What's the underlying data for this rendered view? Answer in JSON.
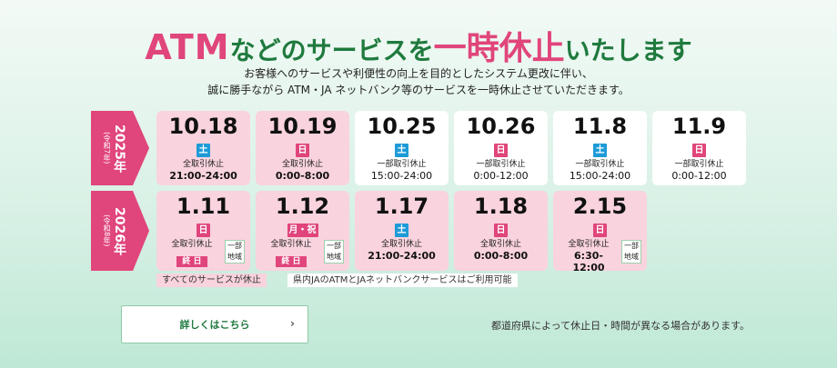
{
  "headline": {
    "part1": "ATM",
    "part2": "などのサービスを",
    "part3": "一時休止",
    "part4": "いたします"
  },
  "intro": {
    "line1": "お客様へのサービスや利便性の向上を目的としたシステム更改に伴い、",
    "line2": "誠に勝手ながら ATM・JA ネットバンク等のサービスを一時休止させていただきます。"
  },
  "years": [
    {
      "year": "2025年",
      "era": "(令和7年)"
    },
    {
      "year": "2026年",
      "era": "(令和8年)"
    }
  ],
  "row1": [
    {
      "date": "10.18",
      "day": "土",
      "status": "全取引休止",
      "time": "21:00-24:00"
    },
    {
      "date": "10.19",
      "day": "日",
      "status": "全取引休止",
      "time": "0:00-8:00"
    },
    {
      "date": "10.25",
      "day": "土",
      "status": "一部取引休止",
      "time": "15:00-24:00"
    },
    {
      "date": "10.26",
      "day": "日",
      "status": "一部取引休止",
      "time": "0:00-12:00"
    },
    {
      "date": "11.8",
      "day": "土",
      "status": "一部取引休止",
      "time": "15:00-24:00"
    },
    {
      "date": "11.9",
      "day": "日",
      "status": "一部取引休止",
      "time": "0:00-12:00"
    }
  ],
  "row2": [
    {
      "date": "1.11",
      "day": "日",
      "status": "全取引休止",
      "allday": "終 日",
      "region": "一部地域"
    },
    {
      "date": "1.12",
      "day": "月・祝",
      "status": "全取引休止",
      "allday": "終 日",
      "region": "一部地域"
    },
    {
      "date": "1.17",
      "day": "土",
      "status": "全取引休止",
      "time": "21:00-24:00"
    },
    {
      "date": "1.18",
      "day": "日",
      "status": "全取引休止",
      "time": "0:00-8:00"
    },
    {
      "date": "2.15",
      "day": "日",
      "status": "全取引休止",
      "time": "6:30-12:00",
      "region": "一部地域"
    }
  ],
  "legend": {
    "full": "すべてのサービスが休止",
    "partial": "県内JAのATMとJAネットバンクサービスはご利用可能"
  },
  "details_button": {
    "label": "詳しくはこちら",
    "chevron": "›"
  },
  "footnote": "都道府県によって休止日・時間が異なる場合があります。",
  "colors": {
    "accent_pink": "#e0457b",
    "green": "#1f7a3e",
    "saturday_blue": "#1e9bd7",
    "card_pink": "#f9d3de"
  }
}
